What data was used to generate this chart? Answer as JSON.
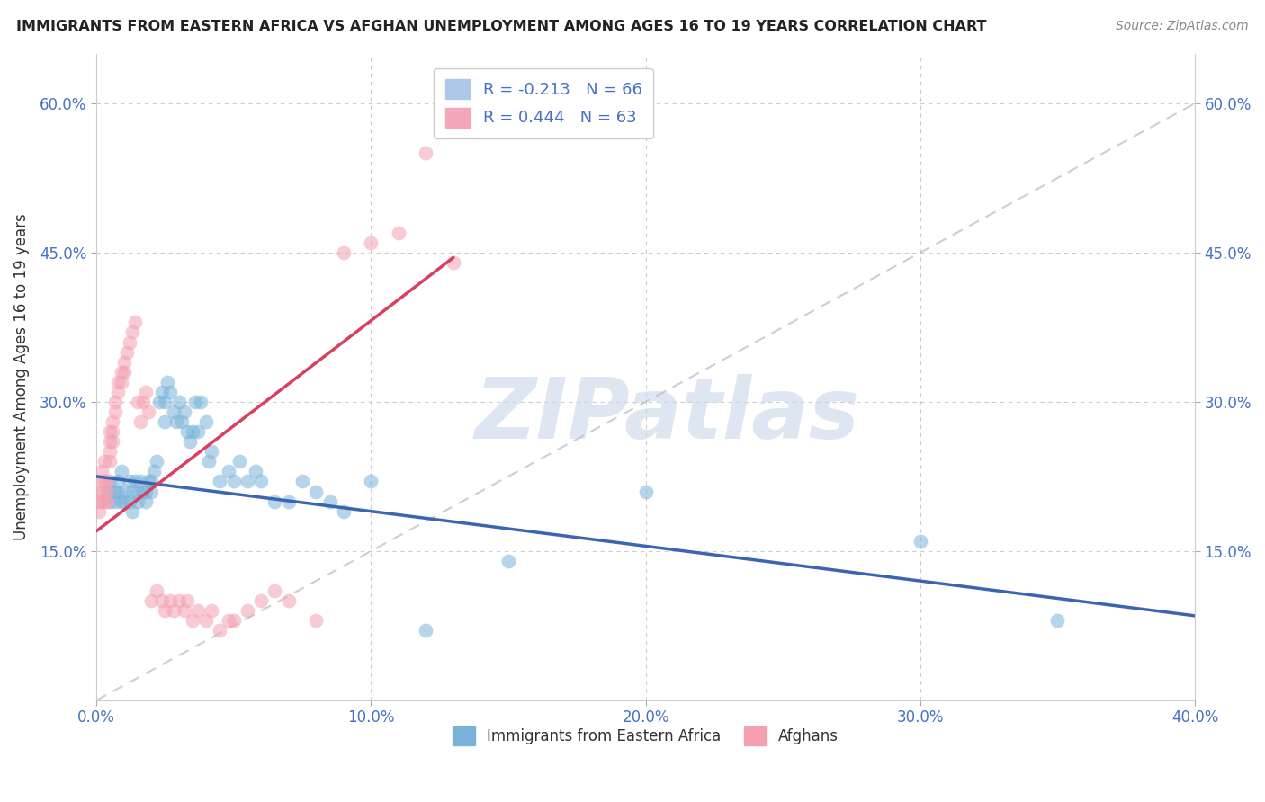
{
  "title": "IMMIGRANTS FROM EASTERN AFRICA VS AFGHAN UNEMPLOYMENT AMONG AGES 16 TO 19 YEARS CORRELATION CHART",
  "source": "Source: ZipAtlas.com",
  "ylabel": "Unemployment Among Ages 16 to 19 years",
  "xlim": [
    0.0,
    0.4
  ],
  "ylim": [
    0.0,
    0.65
  ],
  "xticks": [
    0.0,
    0.1,
    0.2,
    0.3,
    0.4
  ],
  "xticklabels": [
    "0.0%",
    "10.0%",
    "20.0%",
    "30.0%",
    "40.0%"
  ],
  "yticks": [
    0.15,
    0.3,
    0.45,
    0.6
  ],
  "yticklabels": [
    "15.0%",
    "30.0%",
    "45.0%",
    "60.0%"
  ],
  "legend1_label": "R = -0.213   N = 66",
  "legend2_label": "R = 0.444   N = 63",
  "legend1_color": "#aec6e8",
  "legend2_color": "#f4a7b9",
  "watermark": "ZIPatlas",
  "watermark_color": "#c8d8e8",
  "blue_color": "#7ab3d9",
  "pink_color": "#f4a0b0",
  "trend_blue": "#3a65b0",
  "trend_pink": "#d94060",
  "blue_scatter_x": [
    0.005,
    0.005,
    0.005,
    0.007,
    0.007,
    0.008,
    0.008,
    0.009,
    0.009,
    0.01,
    0.01,
    0.012,
    0.012,
    0.013,
    0.013,
    0.014,
    0.015,
    0.015,
    0.016,
    0.017,
    0.018,
    0.018,
    0.019,
    0.02,
    0.02,
    0.021,
    0.022,
    0.023,
    0.024,
    0.025,
    0.025,
    0.026,
    0.027,
    0.028,
    0.029,
    0.03,
    0.031,
    0.032,
    0.033,
    0.034,
    0.035,
    0.036,
    0.037,
    0.038,
    0.04,
    0.041,
    0.042,
    0.045,
    0.048,
    0.05,
    0.052,
    0.055,
    0.058,
    0.06,
    0.065,
    0.07,
    0.075,
    0.08,
    0.085,
    0.09,
    0.1,
    0.12,
    0.15,
    0.2,
    0.3,
    0.35
  ],
  "blue_scatter_y": [
    0.21,
    0.22,
    0.2,
    0.21,
    0.2,
    0.22,
    0.21,
    0.2,
    0.23,
    0.2,
    0.21,
    0.22,
    0.2,
    0.21,
    0.19,
    0.22,
    0.21,
    0.2,
    0.22,
    0.21,
    0.2,
    0.21,
    0.22,
    0.21,
    0.22,
    0.23,
    0.24,
    0.3,
    0.31,
    0.3,
    0.28,
    0.32,
    0.31,
    0.29,
    0.28,
    0.3,
    0.28,
    0.29,
    0.27,
    0.26,
    0.27,
    0.3,
    0.27,
    0.3,
    0.28,
    0.24,
    0.25,
    0.22,
    0.23,
    0.22,
    0.24,
    0.22,
    0.23,
    0.22,
    0.2,
    0.2,
    0.22,
    0.21,
    0.2,
    0.19,
    0.22,
    0.07,
    0.14,
    0.21,
    0.16,
    0.08
  ],
  "pink_scatter_x": [
    0.001,
    0.001,
    0.001,
    0.002,
    0.002,
    0.002,
    0.002,
    0.003,
    0.003,
    0.003,
    0.004,
    0.004,
    0.004,
    0.005,
    0.005,
    0.005,
    0.005,
    0.006,
    0.006,
    0.006,
    0.007,
    0.007,
    0.008,
    0.008,
    0.009,
    0.009,
    0.01,
    0.01,
    0.011,
    0.012,
    0.013,
    0.014,
    0.015,
    0.016,
    0.017,
    0.018,
    0.019,
    0.02,
    0.022,
    0.024,
    0.025,
    0.027,
    0.028,
    0.03,
    0.032,
    0.033,
    0.035,
    0.037,
    0.04,
    0.042,
    0.045,
    0.048,
    0.05,
    0.055,
    0.06,
    0.065,
    0.07,
    0.08,
    0.09,
    0.1,
    0.11,
    0.12,
    0.13
  ],
  "pink_scatter_y": [
    0.2,
    0.19,
    0.21,
    0.22,
    0.21,
    0.2,
    0.23,
    0.24,
    0.22,
    0.2,
    0.21,
    0.22,
    0.2,
    0.26,
    0.27,
    0.25,
    0.24,
    0.28,
    0.27,
    0.26,
    0.3,
    0.29,
    0.32,
    0.31,
    0.33,
    0.32,
    0.34,
    0.33,
    0.35,
    0.36,
    0.37,
    0.38,
    0.3,
    0.28,
    0.3,
    0.31,
    0.29,
    0.1,
    0.11,
    0.1,
    0.09,
    0.1,
    0.09,
    0.1,
    0.09,
    0.1,
    0.08,
    0.09,
    0.08,
    0.09,
    0.07,
    0.08,
    0.08,
    0.09,
    0.1,
    0.11,
    0.1,
    0.08,
    0.45,
    0.46,
    0.47,
    0.55,
    0.44
  ],
  "blue_trend_x0": 0.0,
  "blue_trend_y0": 0.225,
  "blue_trend_x1": 0.4,
  "blue_trend_y1": 0.085,
  "pink_trend_x0": 0.0,
  "pink_trend_y0": 0.17,
  "pink_trend_x1": 0.13,
  "pink_trend_y1": 0.445
}
